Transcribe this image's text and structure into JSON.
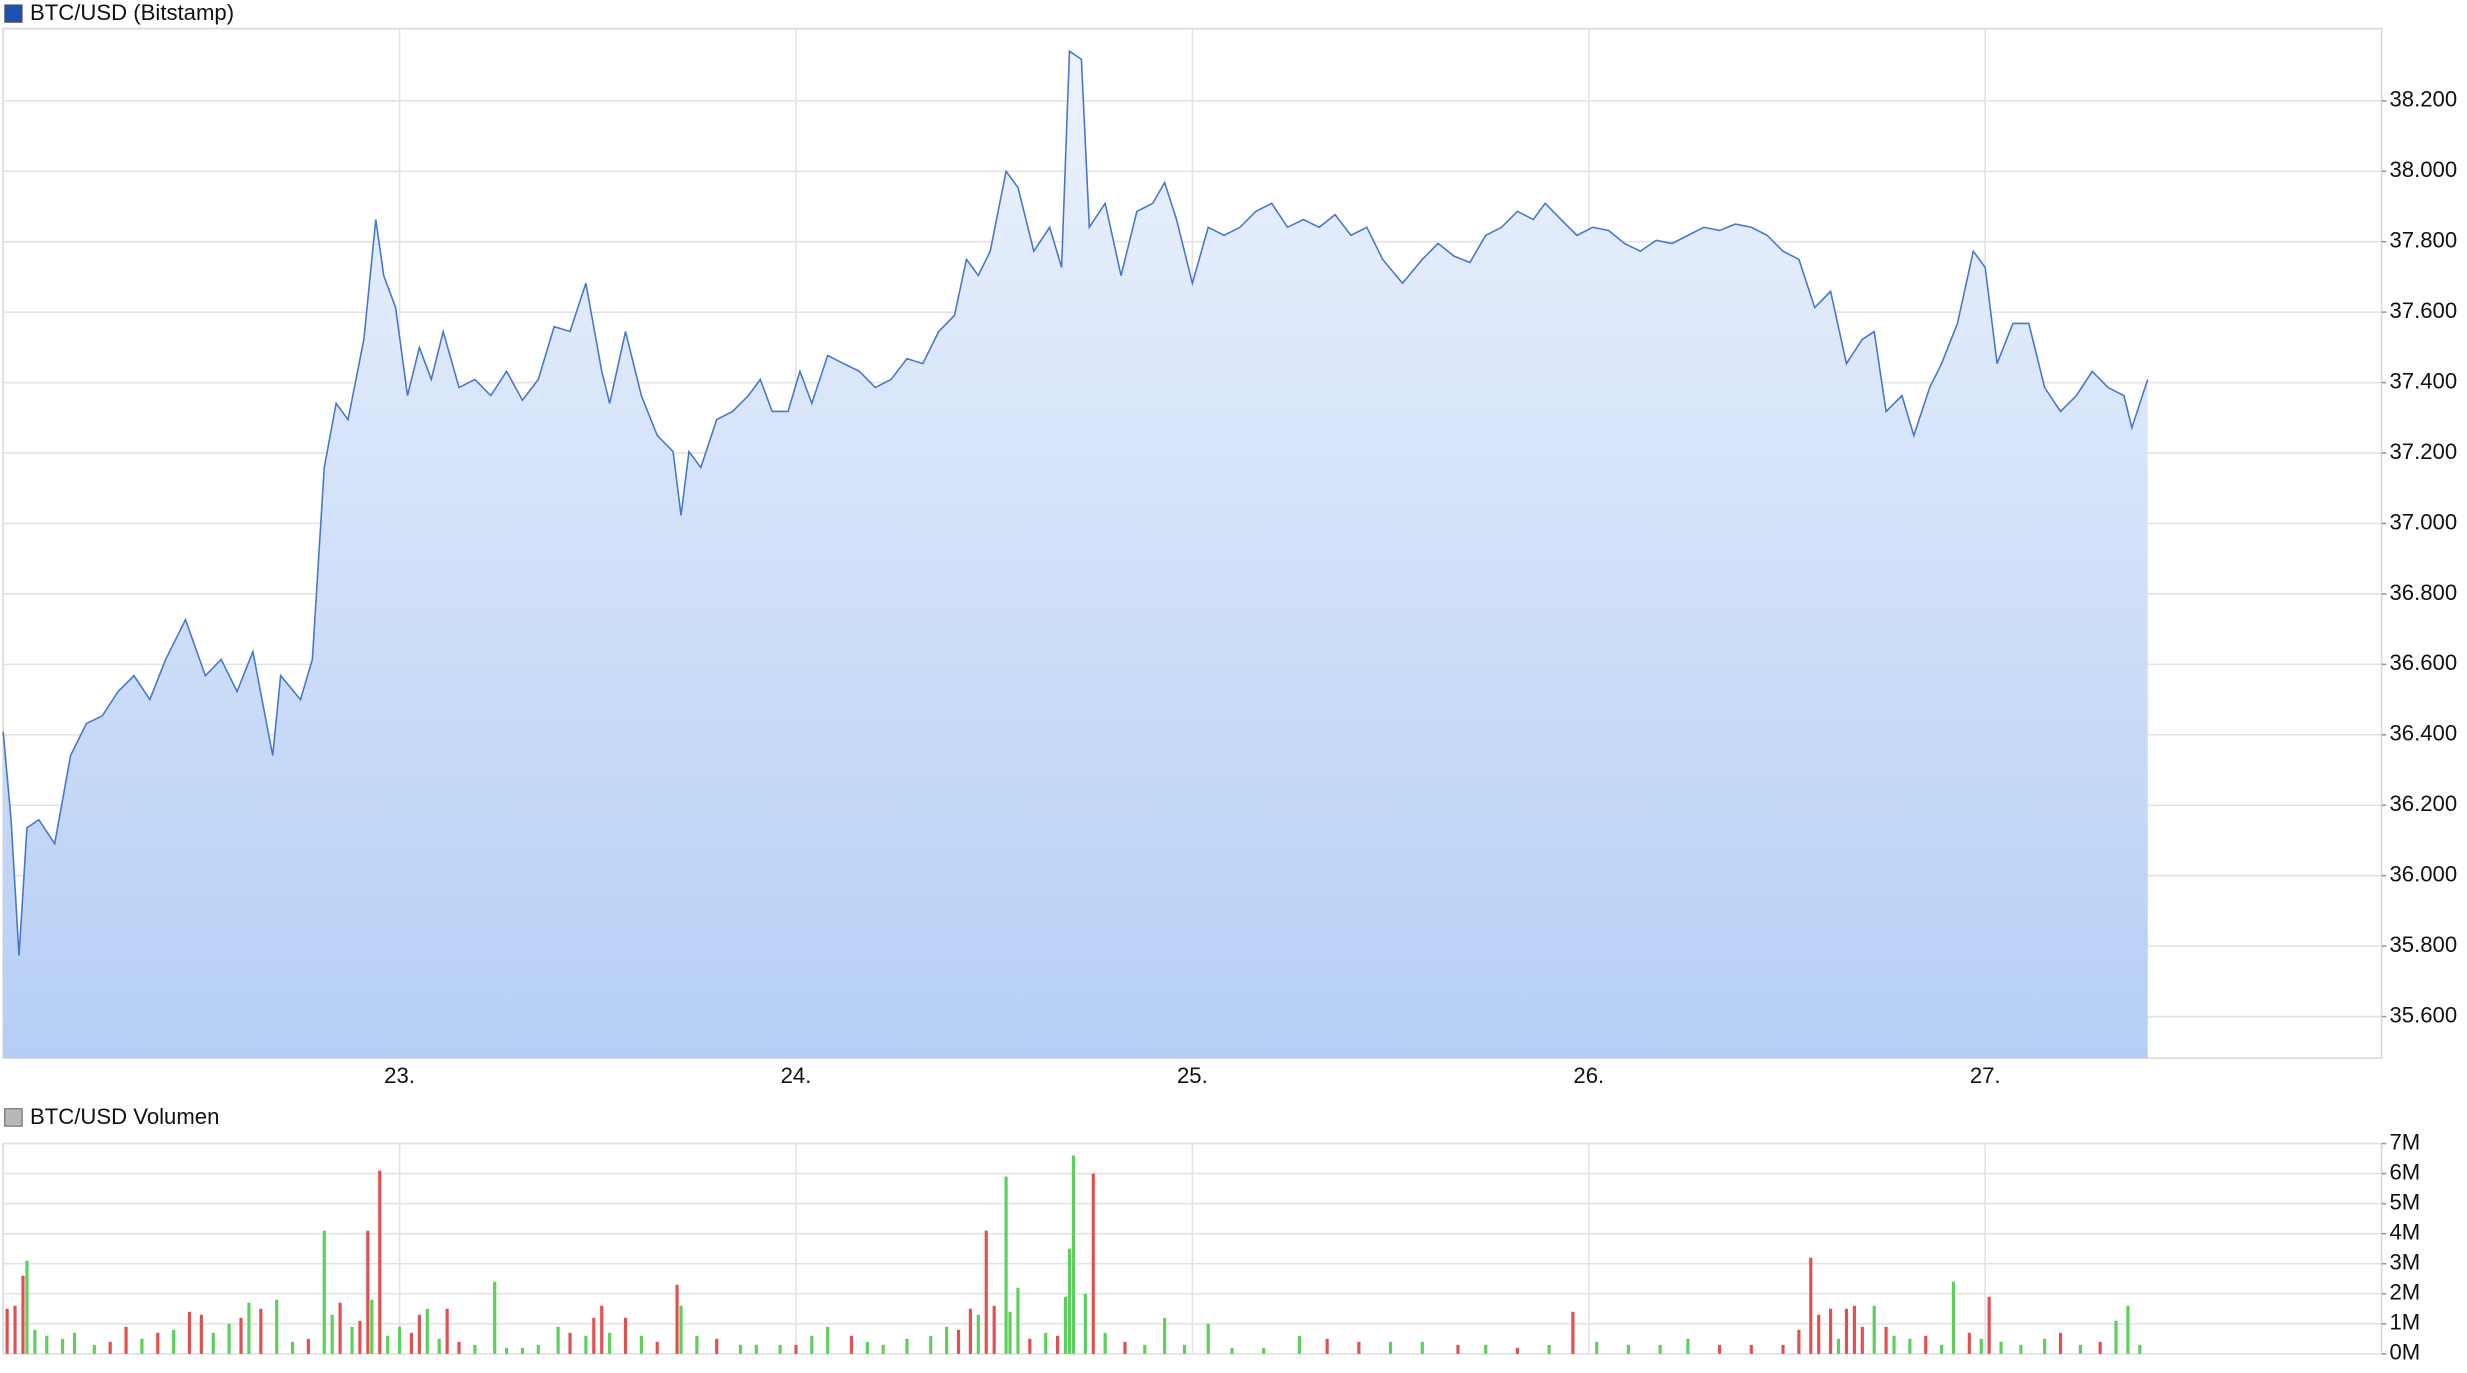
{
  "chart_data": [
    {
      "type": "line",
      "title": "BTC/USD (Bitstamp)",
      "color": "#4677cc",
      "fill": [
        "#edf3fd",
        "#b6cef5"
      ],
      "legend_color": "#1f4fb0",
      "grid": true,
      "xlim": [
        22,
        28
      ],
      "xticks": [
        {
          "value": 23,
          "label": "23."
        },
        {
          "value": 24,
          "label": "24."
        },
        {
          "value": 25,
          "label": "25."
        },
        {
          "value": 26,
          "label": "26."
        },
        {
          "value": 27,
          "label": "27."
        }
      ],
      "ylim": [
        35482,
        38405
      ],
      "yticks": [
        {
          "value": 35600,
          "label": "35.600"
        },
        {
          "value": 35800,
          "label": "35.800"
        },
        {
          "value": 36000,
          "label": "36.000"
        },
        {
          "value": 36200,
          "label": "36.200"
        },
        {
          "value": 36400,
          "label": "36.400"
        },
        {
          "value": 36600,
          "label": "36.600"
        },
        {
          "value": 36800,
          "label": "36.800"
        },
        {
          "value": 37000,
          "label": "37.000"
        },
        {
          "value": 37200,
          "label": "37.200"
        },
        {
          "value": 37400,
          "label": "37.400"
        },
        {
          "value": 37600,
          "label": "37.600"
        },
        {
          "value": 37800,
          "label": "37.800"
        },
        {
          "value": 38000,
          "label": "38.000"
        },
        {
          "value": 38200,
          "label": "38.200"
        }
      ],
      "x": [
        22.0,
        22.02,
        22.04,
        22.06,
        22.09,
        22.13,
        22.17,
        22.21,
        22.25,
        22.29,
        22.33,
        22.37,
        22.41,
        22.46,
        22.51,
        22.55,
        22.59,
        22.63,
        22.68,
        22.7,
        22.75,
        22.78,
        22.81,
        22.84,
        22.87,
        22.91,
        22.94,
        22.96,
        22.99,
        23.02,
        23.05,
        23.08,
        23.11,
        23.15,
        23.19,
        23.23,
        23.27,
        23.31,
        23.35,
        23.39,
        23.43,
        23.47,
        23.51,
        23.53,
        23.57,
        23.61,
        23.65,
        23.69,
        23.71,
        23.73,
        23.76,
        23.8,
        23.84,
        23.88,
        23.91,
        23.94,
        23.98,
        24.01,
        24.04,
        24.08,
        24.12,
        24.16,
        24.2,
        24.24,
        24.28,
        24.32,
        24.36,
        24.4,
        24.43,
        24.46,
        24.49,
        24.53,
        24.56,
        24.6,
        24.64,
        24.67,
        24.69,
        24.72,
        24.74,
        24.78,
        24.82,
        24.86,
        24.9,
        24.93,
        24.96,
        25.0,
        25.04,
        25.08,
        25.12,
        25.16,
        25.2,
        25.24,
        25.28,
        25.32,
        25.36,
        25.4,
        25.44,
        25.48,
        25.53,
        25.58,
        25.62,
        25.66,
        25.7,
        25.74,
        25.78,
        25.82,
        25.86,
        25.89,
        25.93,
        25.97,
        26.01,
        26.05,
        26.09,
        26.13,
        26.17,
        26.21,
        26.25,
        26.29,
        26.33,
        26.37,
        26.41,
        26.45,
        26.49,
        26.53,
        26.57,
        26.61,
        26.65,
        26.69,
        26.72,
        26.75,
        26.79,
        26.82,
        26.86,
        26.89,
        26.93,
        26.97,
        27.0,
        27.03,
        27.07,
        27.11,
        27.15,
        27.19,
        27.23,
        27.27,
        27.31,
        27.35,
        27.37,
        27.41
      ],
      "values": [
        36409,
        36159,
        35773,
        36136,
        36159,
        36091,
        36341,
        36432,
        36454,
        36523,
        36568,
        36500,
        36614,
        36727,
        36568,
        36614,
        36523,
        36636,
        36341,
        36568,
        36500,
        36614,
        37159,
        37341,
        37295,
        37523,
        37863,
        37704,
        37613,
        37363,
        37500,
        37409,
        37545,
        37386,
        37409,
        37363,
        37432,
        37350,
        37409,
        37559,
        37545,
        37682,
        37432,
        37341,
        37545,
        37363,
        37250,
        37204,
        37023,
        37204,
        37159,
        37295,
        37318,
        37363,
        37409,
        37318,
        37318,
        37432,
        37341,
        37477,
        37454,
        37432,
        37386,
        37409,
        37468,
        37454,
        37545,
        37591,
        37750,
        37704,
        37773,
        38000,
        37954,
        37773,
        37841,
        37727,
        38341,
        38318,
        37841,
        37909,
        37704,
        37886,
        37909,
        37968,
        37863,
        37682,
        37841,
        37818,
        37841,
        37886,
        37909,
        37841,
        37863,
        37841,
        37877,
        37818,
        37841,
        37750,
        37682,
        37750,
        37795,
        37759,
        37741,
        37818,
        37841,
        37886,
        37863,
        37909,
        37863,
        37818,
        37841,
        37832,
        37795,
        37773,
        37804,
        37795,
        37818,
        37841,
        37832,
        37850,
        37841,
        37818,
        37773,
        37750,
        37613,
        37659,
        37454,
        37523,
        37545,
        37318,
        37363,
        37250,
        37386,
        37454,
        37568,
        37773,
        37727,
        37454,
        37568,
        37568,
        37386,
        37318,
        37363,
        37432,
        37386,
        37363,
        37272,
        37409
      ]
    },
    {
      "type": "bar",
      "title": "BTC/USD Volumen",
      "legend_color": "#b8b8b8",
      "grid": true,
      "xlim": [
        22,
        28
      ],
      "xgrid": [
        23,
        24,
        25,
        26,
        27
      ],
      "ylim": [
        0,
        7000000
      ],
      "yticks": [
        {
          "value": 0,
          "label": "0M"
        },
        {
          "value": 1000000,
          "label": "1M"
        },
        {
          "value": 2000000,
          "label": "2M"
        },
        {
          "value": 3000000,
          "label": "3M"
        },
        {
          "value": 4000000,
          "label": "4M"
        },
        {
          "value": 5000000,
          "label": "5M"
        },
        {
          "value": 6000000,
          "label": "6M"
        },
        {
          "value": 7000000,
          "label": "7M"
        }
      ],
      "x": [
        22.01,
        22.03,
        22.05,
        22.06,
        22.08,
        22.11,
        22.15,
        22.18,
        22.23,
        22.27,
        22.31,
        22.35,
        22.39,
        22.43,
        22.47,
        22.5,
        22.53,
        22.57,
        22.6,
        22.62,
        22.65,
        22.69,
        22.73,
        22.77,
        22.81,
        22.83,
        22.85,
        22.88,
        22.9,
        22.92,
        22.93,
        22.95,
        22.97,
        23.0,
        23.03,
        23.05,
        23.07,
        23.1,
        23.12,
        23.15,
        23.19,
        23.24,
        23.27,
        23.31,
        23.35,
        23.4,
        23.43,
        23.47,
        23.49,
        23.51,
        23.53,
        23.57,
        23.61,
        23.65,
        23.7,
        23.71,
        23.75,
        23.8,
        23.86,
        23.9,
        23.96,
        24.0,
        24.04,
        24.08,
        24.14,
        24.18,
        24.22,
        24.28,
        24.34,
        24.38,
        24.41,
        24.44,
        24.46,
        24.48,
        24.5,
        24.53,
        24.54,
        24.56,
        24.59,
        24.63,
        24.66,
        24.68,
        24.69,
        24.7,
        24.73,
        24.75,
        24.78,
        24.83,
        24.88,
        24.93,
        24.98,
        25.04,
        25.1,
        25.18,
        25.27,
        25.34,
        25.42,
        25.5,
        25.58,
        25.67,
        25.74,
        25.82,
        25.9,
        25.96,
        26.02,
        26.1,
        26.18,
        26.25,
        26.33,
        26.41,
        26.49,
        26.53,
        26.56,
        26.58,
        26.61,
        26.63,
        26.65,
        26.67,
        26.69,
        26.72,
        26.75,
        26.77,
        26.81,
        26.85,
        26.89,
        26.92,
        26.96,
        26.99,
        27.01,
        27.04,
        27.09,
        27.15,
        27.19,
        27.24,
        27.29,
        27.33,
        27.36,
        27.39
      ],
      "values": [
        1500000,
        1600000,
        2600000,
        3100000,
        800000,
        600000,
        500000,
        700000,
        300000,
        400000,
        900000,
        500000,
        700000,
        800000,
        1400000,
        1300000,
        700000,
        1000000,
        1200000,
        1700000,
        1500000,
        1800000,
        400000,
        500000,
        4100000,
        1300000,
        1700000,
        900000,
        1100000,
        4100000,
        1800000,
        6100000,
        600000,
        900000,
        700000,
        1300000,
        1500000,
        500000,
        1500000,
        400000,
        300000,
        2400000,
        200000,
        200000,
        300000,
        900000,
        700000,
        600000,
        1200000,
        1600000,
        700000,
        1200000,
        600000,
        400000,
        2300000,
        1600000,
        600000,
        500000,
        300000,
        300000,
        300000,
        300000,
        600000,
        900000,
        600000,
        400000,
        300000,
        500000,
        600000,
        900000,
        800000,
        1500000,
        1300000,
        4100000,
        1600000,
        5900000,
        1400000,
        2200000,
        500000,
        700000,
        600000,
        1900000,
        3500000,
        6600000,
        2000000,
        6000000,
        700000,
        400000,
        300000,
        1200000,
        300000,
        1000000,
        200000,
        200000,
        600000,
        500000,
        400000,
        400000,
        400000,
        300000,
        300000,
        200000,
        300000,
        1400000,
        400000,
        300000,
        300000,
        500000,
        300000,
        300000,
        300000,
        800000,
        3200000,
        1300000,
        1500000,
        500000,
        1500000,
        1600000,
        900000,
        1600000,
        900000,
        600000,
        500000,
        600000,
        300000,
        2400000,
        700000,
        500000,
        1900000,
        400000,
        300000,
        500000,
        700000,
        300000,
        400000,
        1100000,
        1600000,
        300000
      ],
      "colors": [
        "#e05050",
        "#e05050",
        "#e05050",
        "#5ccf5c",
        "#5ccf5c",
        "#5ccf5c",
        "#5ccf5c",
        "#5ccf5c",
        "#5ccf5c",
        "#e05050",
        "#e05050",
        "#5ccf5c",
        "#e05050",
        "#5ccf5c",
        "#e05050",
        "#e05050",
        "#5ccf5c",
        "#5ccf5c",
        "#e05050",
        "#5ccf5c",
        "#e05050",
        "#5ccf5c",
        "#5ccf5c",
        "#e05050",
        "#5ccf5c",
        "#5ccf5c",
        "#e05050",
        "#5ccf5c",
        "#e05050",
        "#e05050",
        "#5ccf5c",
        "#e05050",
        "#5ccf5c",
        "#5ccf5c",
        "#e05050",
        "#e05050",
        "#5ccf5c",
        "#5ccf5c",
        "#e05050",
        "#e05050",
        "#5ccf5c",
        "#5ccf5c",
        "#5ccf5c",
        "#5ccf5c",
        "#5ccf5c",
        "#5ccf5c",
        "#e05050",
        "#5ccf5c",
        "#e05050",
        "#e05050",
        "#5ccf5c",
        "#e05050",
        "#5ccf5c",
        "#e05050",
        "#e05050",
        "#5ccf5c",
        "#5ccf5c",
        "#e05050",
        "#5ccf5c",
        "#5ccf5c",
        "#5ccf5c",
        "#e05050",
        "#5ccf5c",
        "#5ccf5c",
        "#e05050",
        "#5ccf5c",
        "#5ccf5c",
        "#5ccf5c",
        "#5ccf5c",
        "#5ccf5c",
        "#e05050",
        "#e05050",
        "#5ccf5c",
        "#e05050",
        "#e05050",
        "#5ccf5c",
        "#5ccf5c",
        "#5ccf5c",
        "#e05050",
        "#5ccf5c",
        "#e05050",
        "#5ccf5c",
        "#5ccf5c",
        "#5ccf5c",
        "#5ccf5c",
        "#e05050",
        "#5ccf5c",
        "#e05050",
        "#5ccf5c",
        "#5ccf5c",
        "#5ccf5c",
        "#5ccf5c",
        "#5ccf5c",
        "#5ccf5c",
        "#5ccf5c",
        "#e05050",
        "#e05050",
        "#5ccf5c",
        "#5ccf5c",
        "#e05050",
        "#5ccf5c",
        "#e05050",
        "#5ccf5c",
        "#e05050",
        "#5ccf5c",
        "#5ccf5c",
        "#5ccf5c",
        "#5ccf5c",
        "#e05050",
        "#e05050",
        "#e05050",
        "#e05050",
        "#e05050",
        "#e05050",
        "#e05050",
        "#5ccf5c",
        "#e05050",
        "#e05050",
        "#e05050",
        "#5ccf5c",
        "#e05050",
        "#5ccf5c",
        "#5ccf5c",
        "#e05050",
        "#5ccf5c",
        "#5ccf5c",
        "#e05050",
        "#5ccf5c",
        "#e05050",
        "#5ccf5c",
        "#5ccf5c",
        "#5ccf5c",
        "#e05050",
        "#5ccf5c",
        "#e05050",
        "#5ccf5c",
        "#5ccf5c",
        "#5ccf5c"
      ]
    }
  ]
}
